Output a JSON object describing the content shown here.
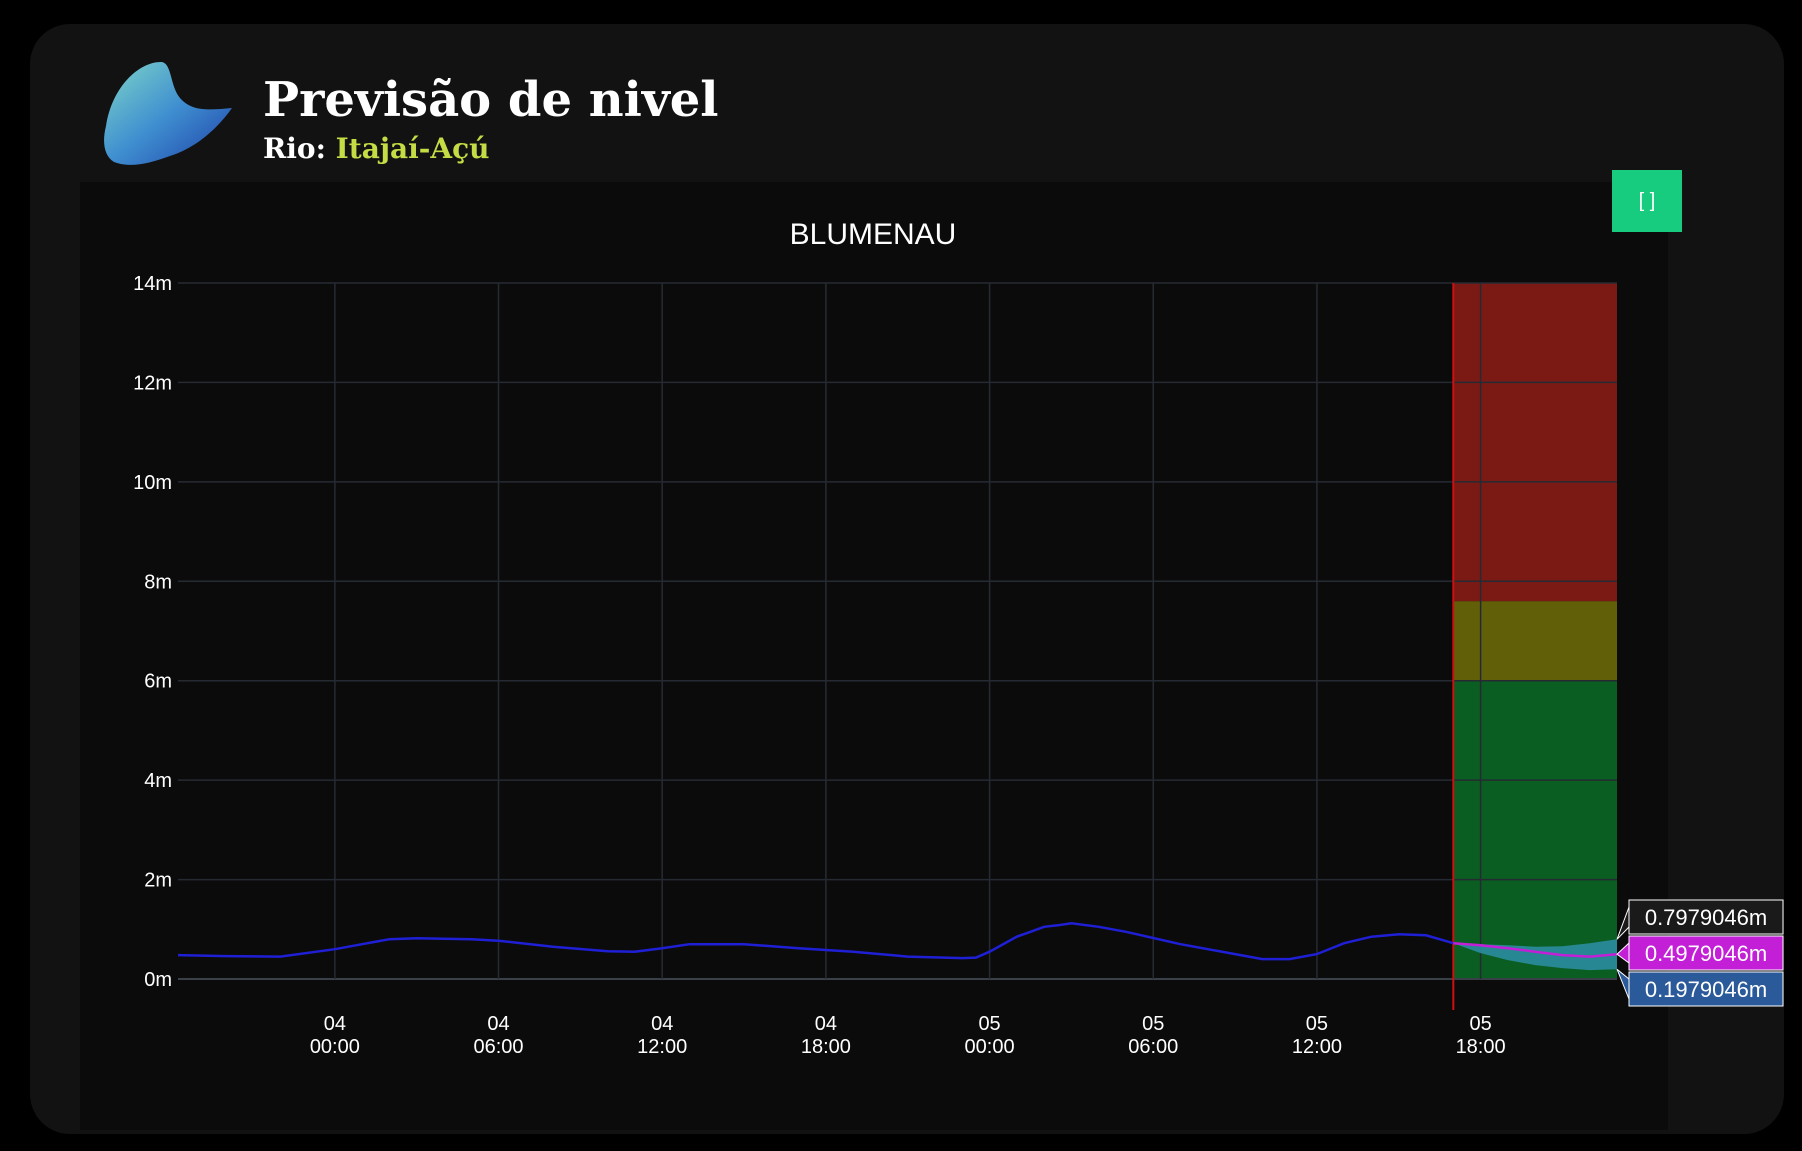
{
  "header": {
    "title": "Previsão de nivel",
    "subtitle_label": "Rio:",
    "subtitle_value": "Itajaí-Açú",
    "logo_icon": "wave-logo-icon"
  },
  "toolbar": {
    "expand_label": "[ ]"
  },
  "colors": {
    "observed_line": "#1f1fd6",
    "forecast_line": "#c21fd6",
    "band_fill": "#2a8da0",
    "zone_red": "#7b1a15",
    "zone_yellow": "#616008",
    "zone_green": "#0b5e22",
    "forecast_start": "#d01010",
    "accent_button": "#17cc7e",
    "subtitle_river": "#c5dc45"
  },
  "chart_data": {
    "type": "line",
    "title": "BLUMENAU",
    "xlabel": "",
    "ylabel": "",
    "y_unit": "m",
    "ylim": [
      0,
      14
    ],
    "y_ticks": [
      0,
      2,
      4,
      6,
      8,
      10,
      12,
      14
    ],
    "xlim": [
      "03 18:15",
      "05 23:00"
    ],
    "x_ticks": [
      {
        "day": "04",
        "time": "00:00"
      },
      {
        "day": "04",
        "time": "06:00"
      },
      {
        "day": "04",
        "time": "12:00"
      },
      {
        "day": "04",
        "time": "18:00"
      },
      {
        "day": "05",
        "time": "00:00"
      },
      {
        "day": "05",
        "time": "06:00"
      },
      {
        "day": "05",
        "time": "12:00"
      },
      {
        "day": "05",
        "time": "18:00"
      }
    ],
    "grid": true,
    "legend": "none",
    "series": [
      {
        "kind": "observed",
        "x": [
          "03 18:15",
          "03 20:00",
          "03 22:00",
          "04 00:00",
          "04 01:00",
          "04 02:00",
          "04 03:00",
          "04 05:00",
          "04 06:00",
          "04 08:00",
          "04 10:00",
          "04 11:00",
          "04 12:00",
          "04 13:00",
          "04 15:00",
          "04 17:00",
          "04 19:00",
          "04 21:00",
          "04 23:00",
          "04 23:30",
          "05 00:00",
          "05 01:00",
          "05 01:30",
          "05 02:00",
          "05 02:30",
          "05 03:00",
          "05 04:00",
          "05 05:00",
          "05 07:00",
          "05 09:00",
          "05 10:00",
          "05 11:00",
          "05 12:00",
          "05 13:00",
          "05 14:00",
          "05 15:00",
          "05 16:00",
          "05 17:00"
        ],
        "y": [
          0.48,
          0.46,
          0.45,
          0.6,
          0.7,
          0.8,
          0.82,
          0.8,
          0.77,
          0.65,
          0.56,
          0.55,
          0.62,
          0.7,
          0.7,
          0.62,
          0.55,
          0.45,
          0.42,
          0.43,
          0.55,
          0.85,
          0.95,
          1.05,
          1.08,
          1.12,
          1.05,
          0.95,
          0.7,
          0.5,
          0.4,
          0.4,
          0.5,
          0.72,
          0.85,
          0.9,
          0.88,
          0.72
        ]
      },
      {
        "kind": "forecast",
        "x": [
          "05 17:00",
          "05 18:00",
          "05 19:00",
          "05 20:00",
          "05 21:00",
          "05 22:00",
          "05 23:00"
        ],
        "y": [
          0.72,
          0.68,
          0.62,
          0.55,
          0.48,
          0.45,
          0.4979046
        ],
        "upper": [
          0.72,
          0.7,
          0.68,
          0.65,
          0.66,
          0.72,
          0.7979046
        ],
        "lower": [
          0.72,
          0.52,
          0.38,
          0.28,
          0.22,
          0.18,
          0.1979046
        ]
      }
    ],
    "alert_zones": [
      {
        "from": 0,
        "to": 6,
        "color": "green"
      },
      {
        "from": 6,
        "to": 7.6,
        "color": "yellow"
      },
      {
        "from": 7.6,
        "to": 14,
        "color": "red"
      }
    ],
    "forecast_start": "05 17:00",
    "hover_labels": [
      "0.7979046m",
      "0.4979046m",
      "0.1979046m"
    ]
  }
}
